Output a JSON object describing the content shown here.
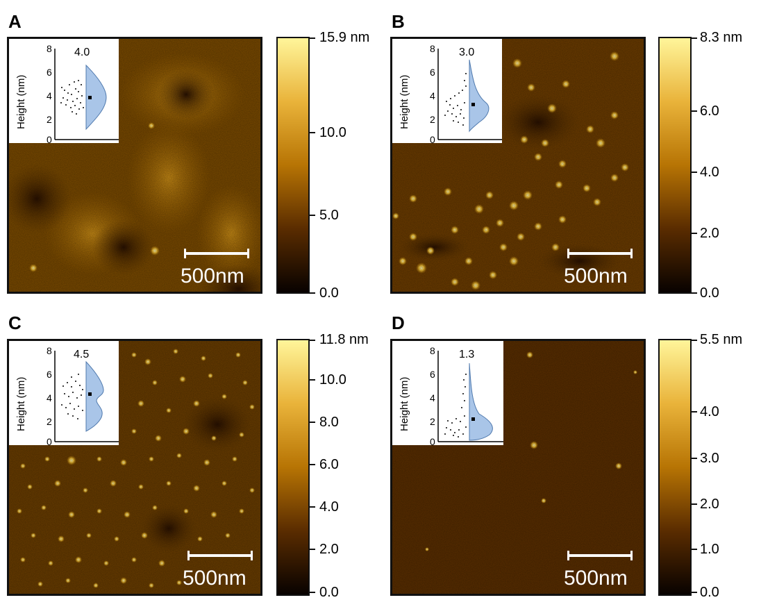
{
  "colors": {
    "afm_dark": "#1a0900",
    "afm_mid": "#8a5400",
    "afm_bright": "#ffe27a",
    "violin": "#a9c5e8"
  },
  "scale_bar_label": "500nm",
  "inset_ylabel": "Height (nm)",
  "panels": [
    {
      "letter": "A",
      "inset_value": "4.0",
      "ticks": [
        "8",
        "6",
        "4",
        "2",
        "0"
      ],
      "colorbar": {
        "max_label": "15.9 nm",
        "labels": [
          "10.0",
          "5.0",
          "0.0"
        ],
        "values": [
          10.0,
          5.0,
          0.0
        ],
        "max": 15.9
      }
    },
    {
      "letter": "B",
      "inset_value": "3.0",
      "ticks": [
        "8",
        "6",
        "4",
        "2",
        "0"
      ],
      "colorbar": {
        "max_label": "8.3 nm",
        "labels": [
          "6.0",
          "4.0",
          "2.0",
          "0.0"
        ],
        "values": [
          6.0,
          4.0,
          2.0,
          0.0
        ],
        "max": 8.3
      }
    },
    {
      "letter": "C",
      "inset_value": "4.5",
      "ticks": [
        "8",
        "6",
        "4",
        "2",
        "0"
      ],
      "colorbar": {
        "max_label": "11.8 nm",
        "labels": [
          "10.0",
          "8.0",
          "6.0",
          "4.0",
          "2.0",
          "0.0"
        ],
        "values": [
          10.0,
          8.0,
          6.0,
          4.0,
          2.0,
          0.0
        ],
        "max": 11.8
      }
    },
    {
      "letter": "D",
      "inset_value": "1.3",
      "ticks": [
        "8",
        "6",
        "4",
        "2",
        "0"
      ],
      "colorbar": {
        "max_label": "5.5 nm",
        "labels": [
          "4.0",
          "3.0",
          "2.0",
          "1.0",
          "0.0"
        ],
        "values": [
          4.0,
          3.0,
          2.0,
          1.0,
          0.0
        ],
        "max": 5.5
      }
    }
  ]
}
